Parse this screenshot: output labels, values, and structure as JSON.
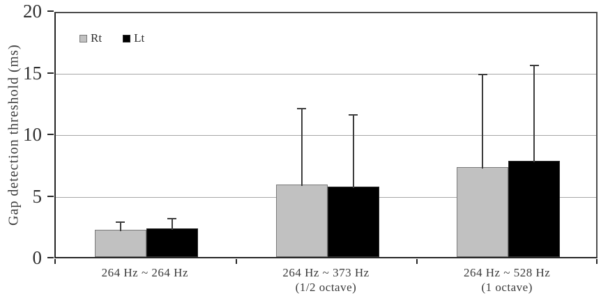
{
  "chart_data": {
    "type": "bar",
    "ylabel": "Gap detection threshold (ms)",
    "xlabel": "",
    "ylim": [
      0,
      20
    ],
    "yticks": [
      0,
      5,
      10,
      15,
      20
    ],
    "grid": "horizontal-gridlines-at-5-10-15",
    "legend_position": "top-left-inside",
    "categories": [
      "264 Hz ~ 264 Hz",
      "264 Hz ~ 373 Hz (1/2 octave)",
      "264 Hz ~ 528 Hz (1 octave)"
    ],
    "category_lines": [
      [
        "264 Hz ~ 264 Hz",
        ""
      ],
      [
        "264 Hz ~ 373 Hz",
        "(1/2 octave)"
      ],
      [
        "264 Hz ~ 528 Hz",
        "(1 octave)"
      ]
    ],
    "series": [
      {
        "name": "Rt",
        "color": "#c1c1c1",
        "border_color": "#7a7a7a",
        "values": [
          2.2,
          5.9,
          7.3
        ],
        "errors_plus": [
          0.8,
          6.3,
          7.7
        ]
      },
      {
        "name": "Lt",
        "color": "#000000",
        "border_color": "#2b2b2b",
        "values": [
          2.3,
          5.7,
          7.8
        ],
        "errors_plus": [
          1.0,
          6.0,
          7.9
        ]
      }
    ],
    "error_bar_color": "#3d3d3d",
    "gridline_color": "#a6a6a6",
    "axis_color": "#262626",
    "text_color": "#3a3a3a",
    "background_color": "#ffffff"
  }
}
